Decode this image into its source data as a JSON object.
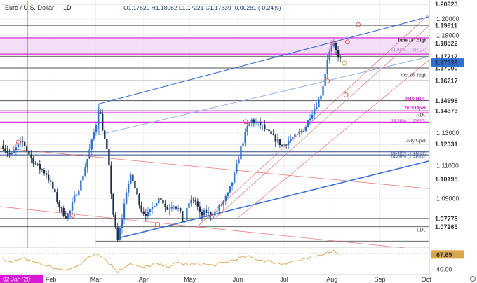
{
  "header": {
    "symbol": "Euro / U.S. Dollar",
    "interval": "1D",
    "ohlc": "O1.17620  H1.18062  L1.17221  C1.17339  -0.00281 (-0.24%)"
  },
  "colors": {
    "bull": "#2f6fd0",
    "bear": "#1c2d4c",
    "magenta": "#d81ad8",
    "channel": "#3b6fd0",
    "red": "#e06060",
    "rsi": "#d9a64e",
    "level": "#555555"
  },
  "chart_data": {
    "type": "candlestick",
    "ylim": [
      1.0605,
      1.2108
    ],
    "x_tick_labels": [
      "Feb",
      "Mar",
      "Apr",
      "May",
      "Jun",
      "Jul",
      "Aug",
      "Sep",
      "Oct"
    ],
    "x_tick_days": [
      31,
      60,
      91,
      121,
      152,
      182,
      213,
      244,
      274
    ],
    "x_range_days": [
      -2,
      276
    ],
    "cursor_date": "02 Jan '20",
    "price_levels": [
      {
        "value": 1.20923,
        "label": "1.20923"
      },
      {
        "value": 1.19611,
        "label": "1.19611"
      },
      {
        "value": 1.18522,
        "label": "1.18522"
      },
      {
        "value": 1.17717,
        "label": "1.17717"
      },
      {
        "value": 1.17,
        "label": "1.17000"
      },
      {
        "value": 1.16217,
        "label": "1.16217"
      },
      {
        "value": 1.14998,
        "label": "1.14998"
      },
      {
        "value": 1.14373,
        "label": "1.14373"
      },
      {
        "value": 1.12331,
        "label": "1.12331"
      },
      {
        "value": 1.10195,
        "label": "1.10195"
      },
      {
        "value": 1.07775,
        "label": "1.07775"
      },
      {
        "value": 1.07265,
        "label": "1.07265"
      }
    ],
    "grey_ticks": [
      {
        "value": 1.2,
        "label": "1.20000"
      },
      {
        "value": 1.19,
        "label": "1.19000"
      },
      {
        "value": 1.13,
        "label": "1.13000"
      },
      {
        "value": 1.11,
        "label": "1.11000"
      },
      {
        "value": 1.09,
        "label": "1.09000"
      }
    ],
    "current_price": {
      "value": 1.17339,
      "label": "1.17339"
    },
    "annotations": [
      {
        "text": "June 18' High",
        "value": 1.1872
      },
      {
        "text": "61.80% (1.18524)",
        "value": 1.1812
      },
      {
        "text": "Oct 18' High",
        "value": 1.1657
      },
      {
        "text": "2019 HDC",
        "value": 1.1512
      },
      {
        "text": "2019 Open",
        "value": 1.1457
      },
      {
        "text": "HDC",
        "value": 1.1412
      },
      {
        "text": "38.20% (1.13695)",
        "value": 1.1376
      },
      {
        "text": "July Open",
        "value": 1.1255
      },
      {
        "text": "61.80% (1.11859)",
        "value": 1.1182
      },
      {
        "text": "61.80% (1.11668)",
        "value": 1.1162
      },
      {
        "text": "LDC",
        "value": 1.0707
      }
    ],
    "magenta_levels": [
      1.1885,
      1.1785,
      1.1437,
      1.1425,
      1.1368
    ],
    "blue_levels": [
      1.1186,
      1.1167
    ],
    "series": [
      {
        "start": 1.1225,
        "points": [
          [
            0,
            1.122
          ],
          [
            5,
            1.116
          ],
          [
            10,
            1.123
          ],
          [
            13,
            1.1245
          ],
          [
            18,
            1.115
          ],
          [
            22,
            1.11
          ],
          [
            28,
            1.105
          ],
          [
            33,
            1.094
          ],
          [
            36,
            1.086
          ],
          [
            40,
            1.079
          ],
          [
            43,
            1.081
          ],
          [
            46,
            1.09
          ],
          [
            50,
            1.099
          ],
          [
            54,
            1.112
          ],
          [
            58,
            1.127
          ],
          [
            60,
            1.135
          ],
          [
            62,
            1.147
          ],
          [
            64,
            1.135
          ],
          [
            68,
            1.115
          ],
          [
            71,
            1.083
          ],
          [
            74,
            1.063
          ],
          [
            77,
            1.078
          ],
          [
            80,
            1.096
          ],
          [
            83,
            1.104
          ],
          [
            86,
            1.094
          ],
          [
            90,
            1.082
          ],
          [
            94,
            1.08
          ],
          [
            98,
            1.087
          ],
          [
            102,
            1.091
          ],
          [
            106,
            1.083
          ],
          [
            110,
            1.087
          ],
          [
            114,
            1.083
          ],
          [
            117,
            1.074
          ],
          [
            120,
            1.087
          ],
          [
            124,
            1.09
          ],
          [
            128,
            1.079
          ],
          [
            131,
            1.082
          ],
          [
            134,
            1.08
          ],
          [
            138,
            1.082
          ],
          [
            142,
            1.087
          ],
          [
            146,
            1.093
          ],
          [
            150,
            1.105
          ],
          [
            154,
            1.121
          ],
          [
            158,
            1.133
          ],
          [
            161,
            1.138
          ],
          [
            164,
            1.136
          ],
          [
            167,
            1.135
          ],
          [
            170,
            1.132
          ],
          [
            174,
            1.128
          ],
          [
            178,
            1.125
          ],
          [
            181,
            1.122
          ],
          [
            184,
            1.125
          ],
          [
            187,
            1.127
          ],
          [
            190,
            1.128
          ],
          [
            193,
            1.131
          ],
          [
            196,
            1.134
          ],
          [
            199,
            1.141
          ],
          [
            202,
            1.146
          ],
          [
            205,
            1.151
          ],
          [
            208,
            1.163
          ],
          [
            210,
            1.176
          ],
          [
            212,
            1.181
          ],
          [
            214,
            1.184
          ],
          [
            216,
            1.179
          ],
          [
            218,
            1.176
          ],
          [
            219,
            1.1734
          ]
        ]
      }
    ],
    "channel_lines": [
      {
        "from": [
          62,
          1.148
        ],
        "to": [
          276,
          1.2015
        ]
      },
      {
        "from": [
          76,
          1.066
        ],
        "to": [
          276,
          1.113
        ]
      },
      {
        "from": [
          62,
          1.129
        ],
        "to": [
          276,
          1.177
        ]
      }
    ],
    "red_lines": [
      {
        "from": [
          -2,
          1.121
        ],
        "to": [
          276,
          1.096
        ]
      },
      {
        "from": [
          -2,
          1.085
        ],
        "to": [
          276,
          1.058
        ]
      },
      {
        "from": [
          125,
          1.072
        ],
        "to": [
          276,
          1.203
        ]
      },
      {
        "from": [
          138,
          1.0785
        ],
        "to": [
          276,
          1.196
        ]
      },
      {
        "from": [
          152,
          1.078
        ],
        "to": [
          276,
          1.175
        ]
      }
    ],
    "circles": [
      [
        10,
        1.1245
      ],
      [
        45,
        1.0795
      ],
      [
        100,
        1.074
      ],
      [
        135,
        1.0785
      ],
      [
        157,
        1.137
      ],
      [
        210,
        1.162
      ],
      [
        213,
        1.1855
      ],
      [
        221,
        1.173
      ],
      [
        223,
        1.186
      ],
      [
        230,
        1.1965
      ],
      [
        222,
        1.1535
      ]
    ],
    "rsi": {
      "ylim": [
        30,
        80
      ],
      "latest": {
        "value": 67.69,
        "label": "67.69"
      },
      "tick": {
        "value": 40,
        "label": "40.00"
      },
      "points": [
        [
          0,
          58
        ],
        [
          8,
          55
        ],
        [
          14,
          60
        ],
        [
          22,
          52
        ],
        [
          30,
          45
        ],
        [
          38,
          38
        ],
        [
          44,
          40
        ],
        [
          52,
          55
        ],
        [
          60,
          70
        ],
        [
          64,
          65
        ],
        [
          70,
          48
        ],
        [
          74,
          35
        ],
        [
          82,
          52
        ],
        [
          90,
          42
        ],
        [
          98,
          50
        ],
        [
          106,
          45
        ],
        [
          114,
          52
        ],
        [
          120,
          48
        ],
        [
          128,
          50
        ],
        [
          136,
          47
        ],
        [
          144,
          53
        ],
        [
          152,
          60
        ],
        [
          158,
          64
        ],
        [
          166,
          58
        ],
        [
          172,
          55
        ],
        [
          180,
          50
        ],
        [
          188,
          55
        ],
        [
          196,
          58
        ],
        [
          204,
          66
        ],
        [
          210,
          72
        ],
        [
          214,
          75
        ],
        [
          219,
          67.69
        ]
      ]
    }
  }
}
